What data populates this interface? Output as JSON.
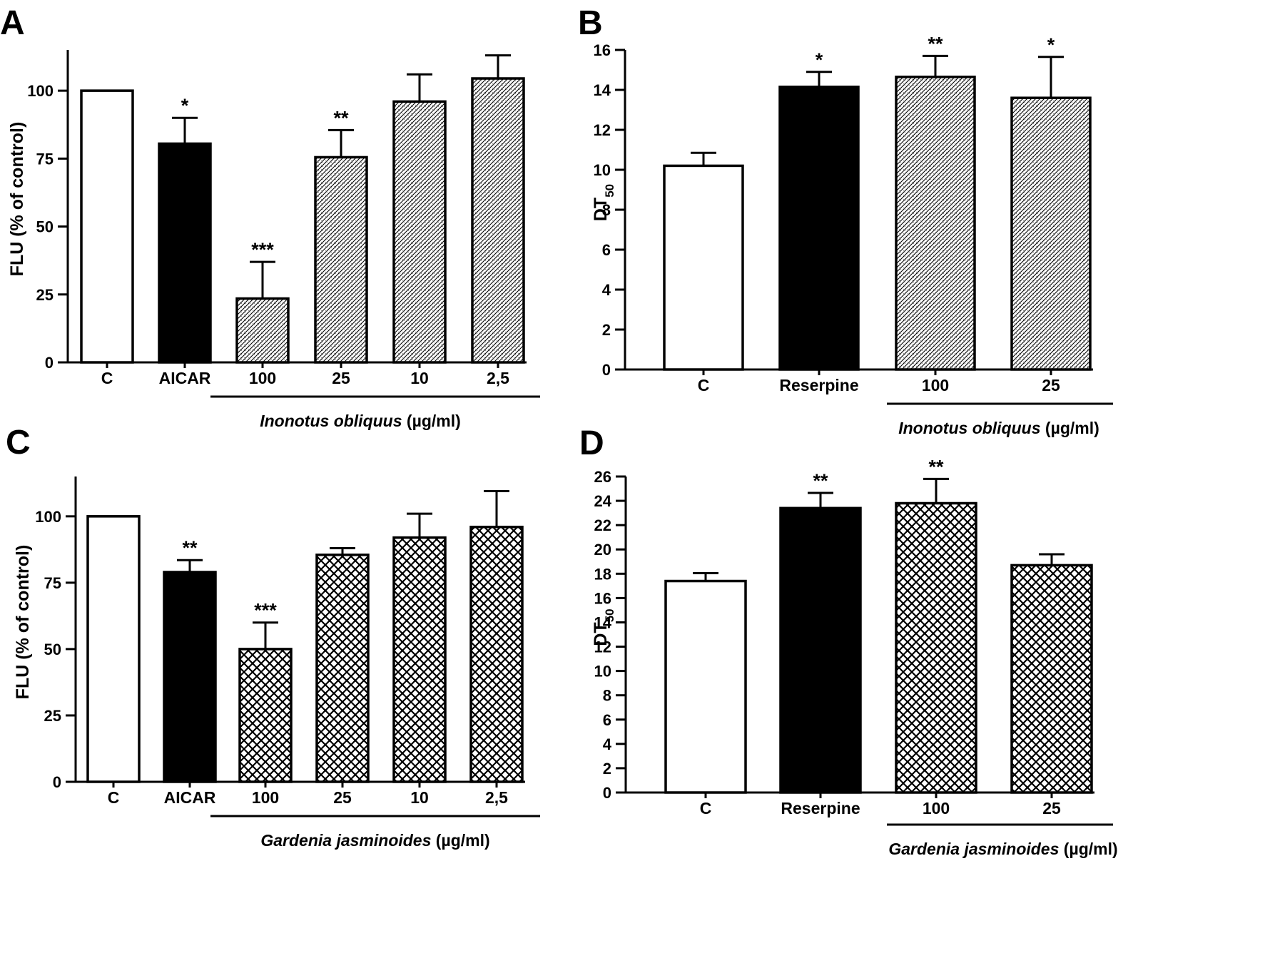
{
  "chart_data": [
    {
      "panel": "A",
      "type": "bar",
      "ylabel": "FLU (% of control)",
      "ylim": [
        0,
        115
      ],
      "yticks": [
        "0",
        "25",
        "50",
        "75",
        "100"
      ],
      "categories": [
        "C",
        "AICAR",
        "100",
        "25",
        "10",
        "2,5"
      ],
      "values": [
        100,
        80.5,
        23.5,
        75.5,
        96,
        104.5
      ],
      "errors": [
        0,
        9.5,
        13.5,
        10,
        10,
        8.5
      ],
      "significance": [
        "",
        "*",
        "***",
        "**",
        "",
        ""
      ],
      "fills": [
        "white",
        "black",
        "fine",
        "fine",
        "fine",
        "fine"
      ],
      "group": {
        "species": "Inonotus obliquus",
        "unit": "(µg/ml)",
        "from_index": 2,
        "to_index": 5
      }
    },
    {
      "panel": "B",
      "type": "bar",
      "ylabel": "DT",
      "ylabel_sub": "50",
      "ylim": [
        0,
        16
      ],
      "yticks": [
        "0",
        "2",
        "4",
        "6",
        "8",
        "10",
        "12",
        "14",
        "16"
      ],
      "categories": [
        "C",
        "Reserpine",
        "100",
        "25"
      ],
      "values": [
        10.2,
        14.15,
        14.65,
        13.6
      ],
      "errors": [
        0.65,
        0.75,
        1.05,
        2.05
      ],
      "significance": [
        "",
        "*",
        "**",
        "*"
      ],
      "fills": [
        "white",
        "black",
        "fine",
        "fine"
      ],
      "group": {
        "species": "Inonotus obliquus",
        "unit": "(µg/ml)",
        "from_index": 2,
        "to_index": 3
      }
    },
    {
      "panel": "C",
      "type": "bar",
      "ylabel": "FLU (% of control)",
      "ylim": [
        0,
        115
      ],
      "yticks": [
        "0",
        "25",
        "50",
        "75",
        "100"
      ],
      "categories": [
        "C",
        "AICAR",
        "100",
        "25",
        "10",
        "2,5"
      ],
      "values": [
        100,
        79,
        50,
        85.5,
        92,
        96
      ],
      "errors": [
        0,
        4.5,
        10,
        2.5,
        9,
        13.5
      ],
      "significance": [
        "",
        "**",
        "***",
        "",
        "",
        ""
      ],
      "fills": [
        "white",
        "black",
        "cross",
        "cross",
        "cross",
        "cross"
      ],
      "group": {
        "species": "Gardenia jasminoides",
        "unit": "(µg/ml)",
        "from_index": 2,
        "to_index": 5
      }
    },
    {
      "panel": "D",
      "type": "bar",
      "ylabel": "DT",
      "ylabel_sub": "50",
      "ylim": [
        0,
        26
      ],
      "yticks": [
        "0",
        "2",
        "4",
        "6",
        "8",
        "10",
        "12",
        "14",
        "16",
        "18",
        "20",
        "22",
        "24",
        "26"
      ],
      "categories": [
        "C",
        "Reserpine",
        "100",
        "25"
      ],
      "values": [
        17.4,
        23.4,
        23.8,
        18.7
      ],
      "errors": [
        0.65,
        1.25,
        2,
        0.9
      ],
      "significance": [
        "",
        "**",
        "**",
        ""
      ],
      "fills": [
        "white",
        "black",
        "cross",
        "cross"
      ],
      "group": {
        "species": "Gardenia jasminoides",
        "unit": "(µg/ml)",
        "from_index": 2,
        "to_index": 3
      }
    }
  ]
}
